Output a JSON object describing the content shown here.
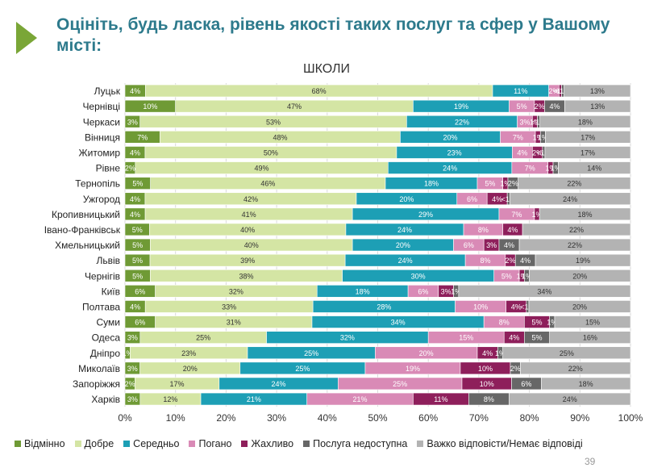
{
  "slide": {
    "title": "Оцініть, будь ласка, рівень якості таких послуг та сфер у Вашому місті:",
    "page_number": "39"
  },
  "chart_data": {
    "type": "bar",
    "orientation": "horizontal",
    "stacked": "percent",
    "title": "ШКОЛИ",
    "xlim": [
      0,
      100
    ],
    "x_ticks": [
      "0%",
      "10%",
      "20%",
      "30%",
      "40%",
      "50%",
      "60%",
      "70%",
      "80%",
      "90%",
      "100%"
    ],
    "grid": true,
    "legend_position": "bottom",
    "categories": [
      "Луцьк",
      "Чернівці",
      "Черкаси",
      "Вінниця",
      "Житомир",
      "Рівне",
      "Тернопіль",
      "Ужгород",
      "Кропивницький",
      "Івано-Франківськ",
      "Хмельницький",
      "Львів",
      "Чернігів",
      "Київ",
      "Полтава",
      "Суми",
      "Одеса",
      "Дніпро",
      "Миколаїв",
      "Запоріжжя",
      "Харків"
    ],
    "series": [
      {
        "name": "Відмінно",
        "color": "#6f9a35",
        "label_color": "#ffffff",
        "values": [
          4,
          10,
          3,
          7,
          4,
          2,
          5,
          4,
          4,
          5,
          5,
          5,
          5,
          6,
          4,
          6,
          3,
          1,
          3,
          2,
          3
        ],
        "labels": [
          "4%",
          "10%",
          "3%",
          "7%",
          "4%",
          "2%",
          "5%",
          "4%",
          "4%",
          "5%",
          "5%",
          "5%",
          "5%",
          "6%",
          "4%",
          "6%",
          "3%",
          "1%",
          "3%",
          "2%",
          "3%"
        ]
      },
      {
        "name": "Добре",
        "color": "#d4e5a4",
        "label_color": "#333333",
        "values": [
          68,
          47,
          53,
          48,
          50,
          49,
          46,
          42,
          41,
          40,
          40,
          39,
          38,
          32,
          33,
          31,
          25,
          23,
          20,
          17,
          12
        ],
        "labels": [
          "68%",
          "47%",
          "53%",
          "48%",
          "50%",
          "49%",
          "46%",
          "42%",
          "41%",
          "40%",
          "40%",
          "39%",
          "38%",
          "32%",
          "33%",
          "31%",
          "25%",
          "23%",
          "20%",
          "17%",
          "12%"
        ]
      },
      {
        "name": "Середньо",
        "color": "#1d9fb5",
        "label_color": "#ffffff",
        "values": [
          11,
          19,
          22,
          20,
          23,
          24,
          18,
          20,
          29,
          24,
          20,
          24,
          30,
          18,
          28,
          34,
          32,
          25,
          25,
          24,
          21
        ],
        "labels": [
          "11%",
          "19%",
          "22%",
          "20%",
          "23%",
          "24%",
          "18%",
          "20%",
          "29%",
          "24%",
          "20%",
          "24%",
          "30%",
          "18%",
          "28%",
          "34%",
          "32%",
          "25%",
          "25%",
          "24%",
          "21%"
        ]
      },
      {
        "name": "Погано",
        "color": "#d98ab6",
        "label_color": "#ffffff",
        "values": [
          2,
          5,
          3,
          7,
          4,
          7,
          5,
          6,
          7,
          8,
          6,
          8,
          5,
          6,
          10,
          8,
          15,
          20,
          19,
          25,
          21
        ],
        "labels": [
          "2%",
          "5%",
          "3%",
          "7%",
          "4%",
          "7%",
          "5%",
          "6%",
          "7%",
          "8%",
          "6%",
          "8%",
          "5%",
          "6%",
          "10%",
          "8%",
          "15%",
          "20%",
          "19%",
          "25%",
          "21%"
        ]
      },
      {
        "name": "Жахливо",
        "color": "#8e1f5b",
        "label_color": "#ffffff",
        "values": [
          0.5,
          2,
          1,
          1,
          2,
          1,
          1,
          4,
          1,
          4,
          3,
          2,
          1,
          3,
          4,
          5,
          4,
          4,
          10,
          10,
          11
        ],
        "labels": [
          "<1%",
          "2%",
          "1%",
          "1%",
          "2%",
          "1%",
          "1%",
          "4%",
          "1%",
          "4%",
          "3%",
          "2%",
          "1%",
          "3%",
          "4%",
          "5%",
          "4%",
          "4%",
          "10%",
          "10%",
          "11%"
        ]
      },
      {
        "name": "Послуга недоступна",
        "color": "#676767",
        "label_color": "#ffffff",
        "values": [
          0.5,
          4,
          0.5,
          1,
          0.5,
          1,
          2,
          0.5,
          0,
          0,
          4,
          4,
          1,
          1,
          0.5,
          1,
          5,
          1,
          2,
          6,
          8
        ],
        "labels": [
          "<1%",
          "4%",
          "<1%",
          "1%",
          "<1%",
          "1%",
          "2%",
          "<1%",
          "",
          "",
          "4%",
          "4%",
          "1%",
          "1%",
          "<1%",
          "1%",
          "5%",
          "1%",
          "2%",
          "6%",
          "8%"
        ]
      },
      {
        "name": "Важко відповісти/Немає відповіді",
        "color": "#b3b3b3",
        "label_color": "#333333",
        "values": [
          13,
          13,
          18,
          17,
          17,
          14,
          22,
          24,
          18,
          22,
          22,
          19,
          20,
          34,
          20,
          15,
          16,
          25,
          22,
          18,
          24
        ],
        "labels": [
          "13%",
          "13%",
          "18%",
          "17%",
          "17%",
          "14%",
          "22%",
          "24%",
          "18%",
          "22%",
          "22%",
          "19%",
          "20%",
          "34%",
          "20%",
          "15%",
          "16%",
          "25%",
          "22%",
          "18%",
          "24%"
        ]
      }
    ]
  }
}
